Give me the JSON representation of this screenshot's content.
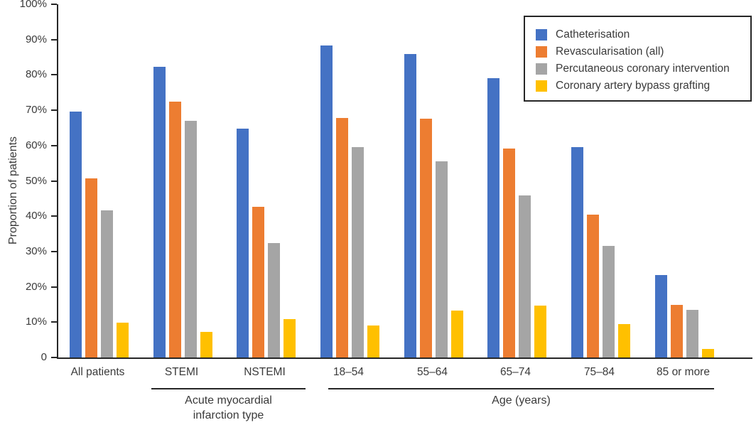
{
  "chart_data": {
    "type": "bar",
    "title": "",
    "xlabel": "",
    "ylabel": "Proportion of patients",
    "ylim": [
      0,
      100
    ],
    "grid": false,
    "legend_position": "top-right",
    "y_ticks": [
      "100%",
      "90%",
      "80%",
      "70%",
      "60%",
      "50%",
      "40%",
      "30%",
      "20%",
      "10%",
      "0"
    ],
    "categories": [
      "All patients",
      "STEMI",
      "NSTEMI",
      "18–54",
      "55–64",
      "65–74",
      "75–84",
      "85 or more"
    ],
    "series": [
      {
        "name": "Catheterisation",
        "color": "#4472C4",
        "values": [
          69.6,
          82.2,
          64.7,
          88.3,
          85.9,
          79.1,
          59.6,
          23.4
        ]
      },
      {
        "name": "Revascularisation (all)",
        "color": "#ED7D31",
        "values": [
          50.7,
          72.5,
          42.6,
          67.8,
          67.6,
          59.2,
          40.4,
          14.9
        ]
      },
      {
        "name": "Percutaneous coronary intervention",
        "color": "#A5A5A5",
        "values": [
          41.6,
          67.0,
          32.3,
          59.5,
          55.6,
          45.8,
          31.5,
          13.4
        ]
      },
      {
        "name": "Coronary artery bypass grafting",
        "color": "#FFC000",
        "values": [
          9.8,
          7.2,
          10.9,
          9.1,
          13.2,
          14.7,
          9.5,
          2.4
        ]
      }
    ],
    "group_axes": [
      {
        "label": "Acute myocardial infarction type",
        "label_lines": [
          "Acute myocardial",
          "infarction type"
        ],
        "from_category": 1,
        "to_category": 2
      },
      {
        "label": "Age (years)",
        "label_lines": [
          "Age (years)"
        ],
        "from_category": 3,
        "to_category": 7
      }
    ]
  }
}
